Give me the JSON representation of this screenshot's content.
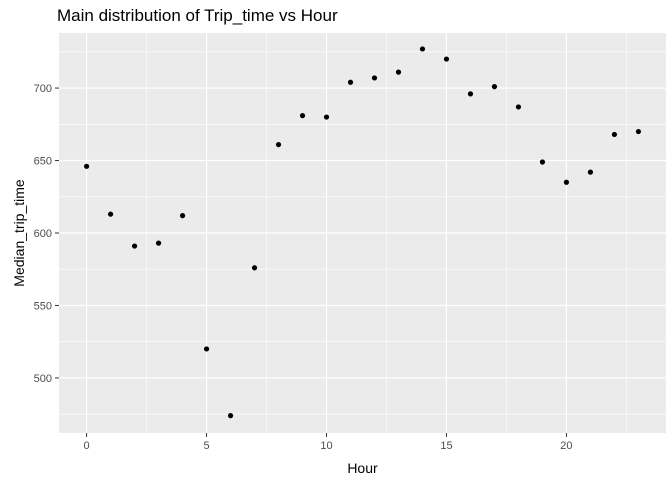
{
  "chart_data": {
    "type": "scatter",
    "title": "Main distribution of Trip_time vs Hour",
    "xlabel": "Hour",
    "ylabel": "Median_trip_time",
    "xlim": [
      -1.15,
      24.15
    ],
    "ylim": [
      462,
      738
    ],
    "x_ticks": [
      0,
      5,
      10,
      15,
      20
    ],
    "y_ticks": [
      500,
      550,
      600,
      650,
      700
    ],
    "grid": true,
    "legend": "none",
    "colors": {
      "panel": "#ebebeb",
      "grid": "#ffffff",
      "point": "#000000"
    },
    "points": [
      {
        "x": 0,
        "y": 646
      },
      {
        "x": 1,
        "y": 613
      },
      {
        "x": 2,
        "y": 591
      },
      {
        "x": 3,
        "y": 593
      },
      {
        "x": 4,
        "y": 612
      },
      {
        "x": 5,
        "y": 520
      },
      {
        "x": 6,
        "y": 474
      },
      {
        "x": 7,
        "y": 576
      },
      {
        "x": 8,
        "y": 661
      },
      {
        "x": 9,
        "y": 681
      },
      {
        "x": 10,
        "y": 680
      },
      {
        "x": 11,
        "y": 704
      },
      {
        "x": 12,
        "y": 707
      },
      {
        "x": 13,
        "y": 711
      },
      {
        "x": 14,
        "y": 727
      },
      {
        "x": 15,
        "y": 720
      },
      {
        "x": 16,
        "y": 696
      },
      {
        "x": 17,
        "y": 701
      },
      {
        "x": 18,
        "y": 687
      },
      {
        "x": 19,
        "y": 649
      },
      {
        "x": 20,
        "y": 635
      },
      {
        "x": 21,
        "y": 642
      },
      {
        "x": 22,
        "y": 668
      },
      {
        "x": 23,
        "y": 670
      }
    ]
  }
}
